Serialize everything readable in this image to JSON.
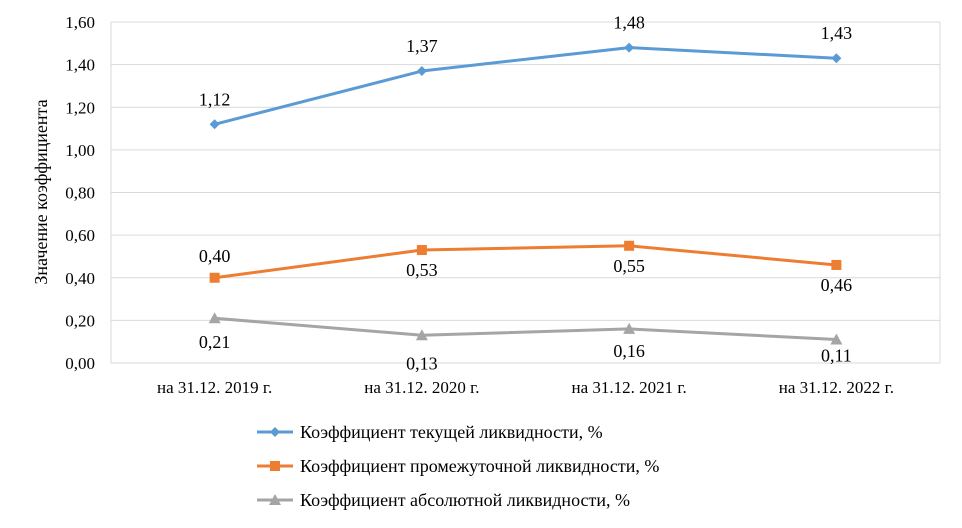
{
  "chart_data": {
    "type": "line",
    "title": "",
    "xlabel": "",
    "ylabel": "Значение коэффициента",
    "categories": [
      "на 31.12. 2019 г.",
      "на 31.12. 2020 г.",
      "на 31.12. 2021 г.",
      "на 31.12. 2022 г."
    ],
    "ylim": [
      0,
      1.6
    ],
    "yticks": [
      0,
      0.2,
      0.4,
      0.6,
      0.8,
      1.0,
      1.2,
      1.4,
      1.6
    ],
    "ytick_labels": [
      "0,00",
      "0,20",
      "0,40",
      "0,60",
      "0,80",
      "1,00",
      "1,20",
      "1,40",
      "1,60"
    ],
    "grid": true,
    "legend_position": "bottom",
    "series": [
      {
        "name": "Коэффициент текущей ликвидности, %",
        "values": [
          1.12,
          1.37,
          1.48,
          1.43
        ],
        "labels": [
          "1,12",
          "1,37",
          "1,48",
          "1,43"
        ],
        "color": "#5B9BD5",
        "marker": "diamond"
      },
      {
        "name": "Коэффициент промежуточной ликвидности, %",
        "values": [
          0.4,
          0.53,
          0.55,
          0.46
        ],
        "labels": [
          "0,40",
          "0,53",
          "0,55",
          "0,46"
        ],
        "color": "#ED7D31",
        "marker": "square"
      },
      {
        "name": "Коэффициент абсолютной ликвидности, %",
        "values": [
          0.21,
          0.13,
          0.16,
          0.11
        ],
        "labels": [
          "0,21",
          "0,13",
          "0,16",
          "0,11"
        ],
        "color": "#A5A5A5",
        "marker": "triangle"
      }
    ]
  }
}
